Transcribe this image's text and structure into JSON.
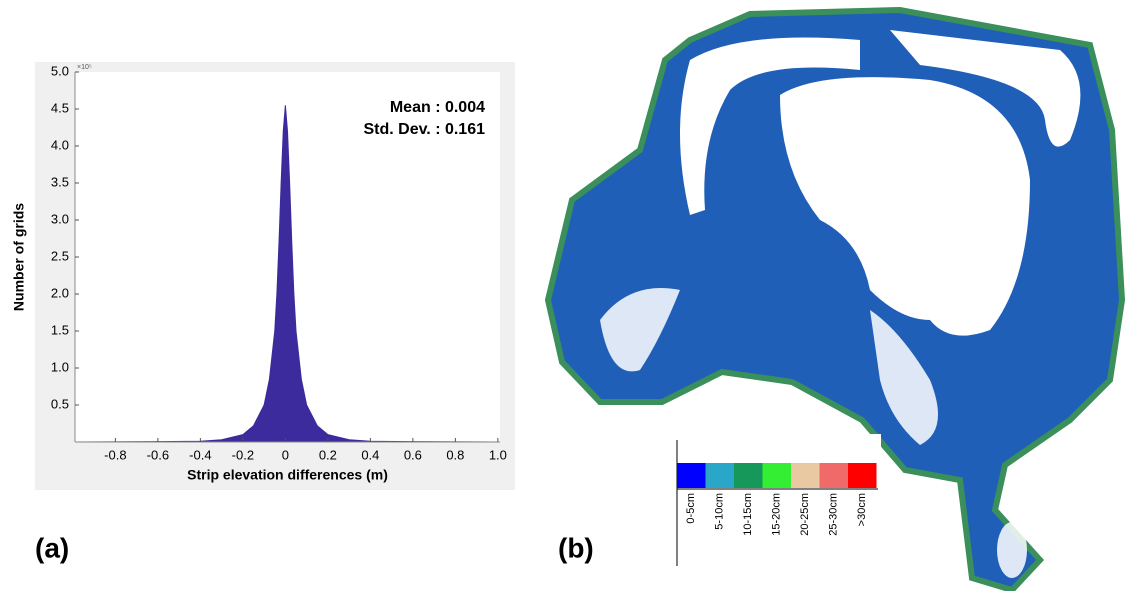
{
  "chart_data": {
    "type": "area",
    "x": [
      -0.99,
      -0.6,
      -0.4,
      -0.3,
      -0.2,
      -0.15,
      -0.1,
      -0.075,
      -0.05,
      -0.04,
      -0.03,
      -0.02,
      -0.01,
      0,
      0.01,
      0.02,
      0.03,
      0.04,
      0.05,
      0.075,
      0.1,
      0.15,
      0.2,
      0.3,
      0.4,
      0.6,
      1.01
    ],
    "values": [
      0,
      0.005,
      0.01,
      0.03,
      0.1,
      0.22,
      0.5,
      0.85,
      1.5,
      2.0,
      2.7,
      3.5,
      4.2,
      4.55,
      4.2,
      3.5,
      2.7,
      2.0,
      1.5,
      0.85,
      0.5,
      0.22,
      0.1,
      0.03,
      0.01,
      0.005,
      0
    ],
    "color": "#3b2b9c",
    "xlabel": "Strip elevation differences (m)",
    "ylabel": "Number of grids",
    "y_scale_note": "×10⁵",
    "annotations": [
      "Mean : 0.004",
      "Std. Dev. : 0.161"
    ],
    "xlim": [
      -0.99,
      1.01
    ],
    "ylim": [
      0,
      5
    ],
    "xticks": [
      -0.8,
      -0.6,
      -0.4,
      -0.2,
      0,
      0.2,
      0.4,
      0.6,
      0.8,
      {
        "value": 1,
        "label": "1.0"
      }
    ],
    "yticks": [
      0.5,
      {
        "value": 1,
        "label": "1.0"
      },
      1.5,
      {
        "value": 2,
        "label": "2.0"
      },
      2.5,
      {
        "value": 3,
        "label": "3.0"
      },
      3.5,
      {
        "value": 4,
        "label": "4.0"
      },
      4.5,
      {
        "value": 5,
        "label": "5.0"
      }
    ],
    "grid": false
  },
  "panels": {
    "a": "(a)",
    "b": "(b)"
  },
  "map_legend": {
    "items": [
      {
        "label": "0-5cm",
        "color": "#0000ff"
      },
      {
        "label": "5-10cm",
        "color": "#2aa6c8"
      },
      {
        "label": "10-15cm",
        "color": "#16985a"
      },
      {
        "label": "15-20cm",
        "color": "#33ee33"
      },
      {
        "label": "20-25cm",
        "color": "#e9c9a2"
      },
      {
        "label": "25-30cm",
        "color": "#f06a6a"
      },
      {
        "label": ">30cm",
        "color": "#ff0000"
      }
    ]
  }
}
